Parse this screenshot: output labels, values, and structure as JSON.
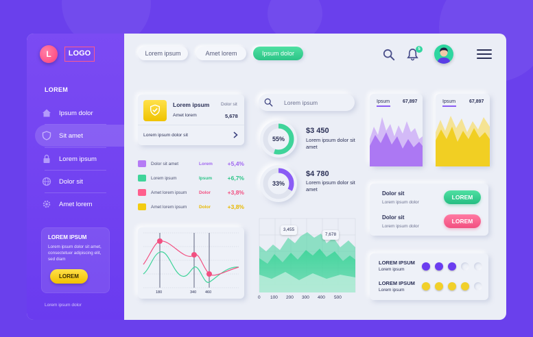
{
  "sidebar": {
    "logo_letter": "L",
    "logo_text": "LOGO",
    "heading": "LOREM",
    "items": [
      {
        "label": "Ipsum dolor",
        "icon": "home-icon"
      },
      {
        "label": "Sit amet",
        "icon": "shield-icon",
        "active": true
      },
      {
        "label": "Lorem ipsum",
        "icon": "lock-icon"
      },
      {
        "label": "Dolor sit",
        "icon": "globe-icon"
      },
      {
        "label": "Amet lorem",
        "icon": "gear-icon"
      }
    ],
    "promo": {
      "title": "LOREM IPSUM",
      "text": "Lorem ipsum dolor sit amet, consectetuer adipiscing elit, sed diam",
      "button": "LOREM"
    },
    "footer": "Lorem ipsum dolor"
  },
  "header": {
    "tabs": [
      "Lorem ipsum",
      "Amet lorem",
      "Ipsum dolor"
    ],
    "active_tab": 2,
    "notification_count": "5"
  },
  "security_card": {
    "title": "Lorem ipsum",
    "status": "Dolor sit",
    "label": "Amet lorem",
    "value": "5,678",
    "link": "Lorem ipsum dolor sit"
  },
  "legend": [
    {
      "label": "Dolor sit amet",
      "tag": "Lorem",
      "value": "+5,4%",
      "color": "#b57bf5",
      "tag_color": "#a066f0"
    },
    {
      "label": "Lorem ipsum",
      "tag": "Ipsum",
      "value": "+6,7%",
      "color": "#3fd49a",
      "tag_color": "#2cc487"
    },
    {
      "label": "Amet lorem ipsum",
      "tag": "Dolor",
      "value": "+3,8%",
      "color": "#ff5f8d",
      "tag_color": "#f24f80"
    },
    {
      "label": "Amet lorem ipsum",
      "tag": "Dolor",
      "value": "+3,8%",
      "color": "#f3cc12",
      "tag_color": "#e8b800"
    }
  ],
  "search": {
    "placeholder": "Lorem ipsum"
  },
  "donuts": [
    {
      "percent": 55,
      "label": "55%",
      "amount": "$3 450",
      "text": "Lorem ipsum dolor sit amet",
      "color": "#3fd49a"
    },
    {
      "percent": 33,
      "label": "33%",
      "amount": "$4 780",
      "text": "Lorem ipsum dolor sit amet",
      "color": "#8a5cf5"
    }
  ],
  "mini_charts": [
    {
      "label": "Ipsum",
      "value": "67,897",
      "color": "#b57bf5"
    },
    {
      "label": "Ipsum",
      "value": "67,897",
      "color": "#f1d02a"
    }
  ],
  "actions": [
    {
      "title": "Dolor sit",
      "text": "Lorem ipsum dolor",
      "button": "LOREM",
      "style": "green"
    },
    {
      "title": "Dolor sit",
      "text": "Lorem ipsum dolor",
      "button": "LOREM",
      "style": "pink"
    }
  ],
  "ratings": [
    {
      "title": "LOREM IPSUM",
      "text": "Lorem ipsum",
      "filled": 3,
      "total": 5,
      "color": "#6b3df0"
    },
    {
      "title": "LOREM IPSUM",
      "text": "Lorem ipsum",
      "filled": 4,
      "total": 5,
      "color": "#f1d02a"
    }
  ],
  "line_chart": {
    "x_ticks": [
      "180",
      "340",
      "460"
    ]
  },
  "area_chart": {
    "callouts": [
      "3,455",
      "7,678"
    ],
    "x_ticks": [
      "0",
      "100",
      "200",
      "300",
      "400",
      "500"
    ]
  }
}
